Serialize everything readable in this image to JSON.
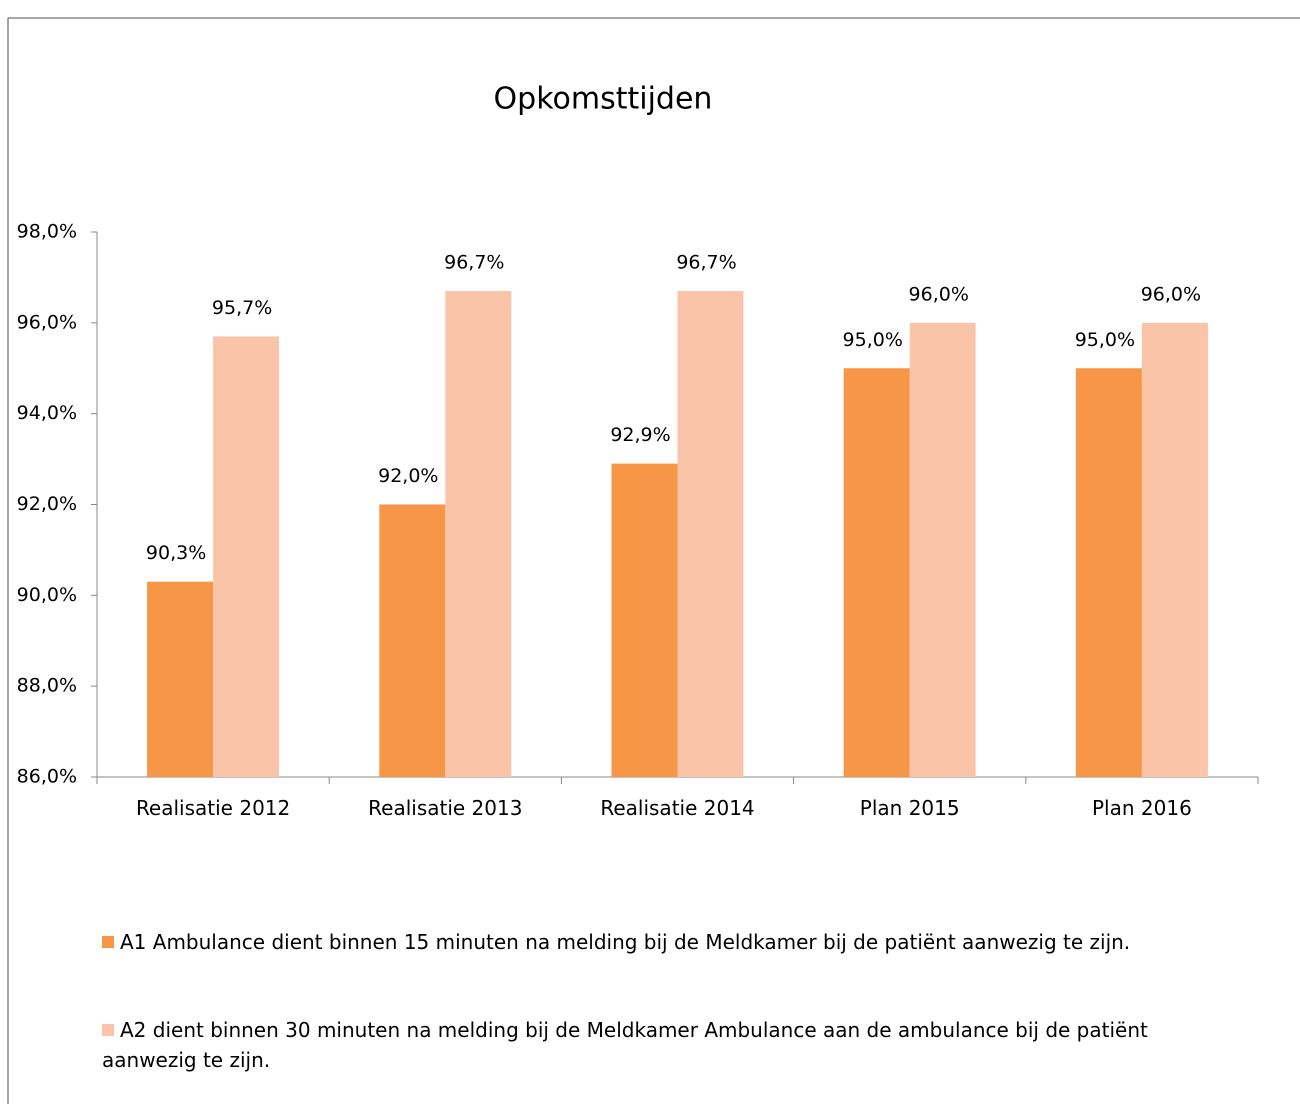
{
  "chart_data": {
    "type": "bar",
    "title": "Opkomsttijden",
    "categories": [
      "Realisatie 2012",
      "Realisatie 2013",
      "Realisatie 2014",
      "Plan 2015",
      "Plan 2016"
    ],
    "series": [
      {
        "name": "A1 Ambulance dient binnen 15 minuten na melding bij de Meldkamer bij de patiënt aanwezig te zijn.",
        "color": "#f79646",
        "values": [
          90.3,
          92.0,
          92.9,
          95.0,
          95.0
        ],
        "value_labels": [
          "90,3%",
          "92,0%",
          "92,9%",
          "95,0%",
          "95,0%"
        ]
      },
      {
        "name": "A2 dient binnen 30 minuten na melding bij de Meldkamer Ambulance aan de ambulance bij de patiënt aanwezig te zijn.",
        "color": "#fac4a8",
        "values": [
          95.7,
          96.7,
          96.7,
          96.0,
          96.0
        ],
        "value_labels": [
          "95,7%",
          "96,7%",
          "96,7%",
          "96,0%",
          "96,0%"
        ]
      }
    ],
    "ylim": [
      86,
      98
    ],
    "yticks": [
      {
        "value": 86,
        "label": "86,0%"
      },
      {
        "value": 88,
        "label": "88,0%"
      },
      {
        "value": 90,
        "label": "90,0%"
      },
      {
        "value": 92,
        "label": "92,0%"
      },
      {
        "value": 94,
        "label": "94,0%"
      },
      {
        "value": 96,
        "label": "96,0%"
      },
      {
        "value": 98,
        "label": "98,0%"
      }
    ],
    "grid": false,
    "legend": "bottom"
  }
}
